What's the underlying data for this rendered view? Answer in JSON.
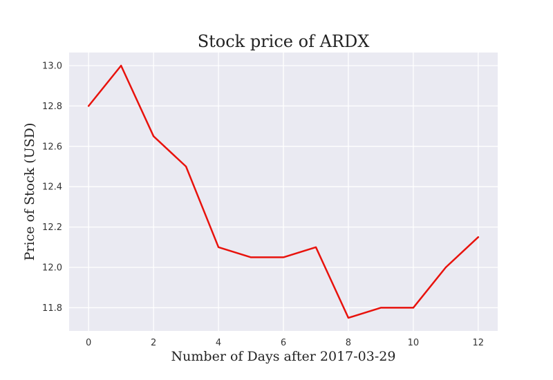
{
  "chart_data": {
    "type": "line",
    "title": "Stock price of ARDX",
    "xlabel": "Number of Days after 2017-03-29",
    "ylabel": "Price of Stock (USD)",
    "xlim": [
      -0.6,
      12.6
    ],
    "ylim": [
      11.685,
      13.065
    ],
    "xticks": [
      0,
      2,
      4,
      6,
      8,
      10,
      12
    ],
    "xtick_labels": [
      "0",
      "2",
      "4",
      "6",
      "8",
      "10",
      "12"
    ],
    "yticks": [
      11.8,
      12.0,
      12.2,
      12.4,
      12.6,
      12.8,
      13.0
    ],
    "ytick_labels": [
      "11.8",
      "12.0",
      "12.2",
      "12.4",
      "12.6",
      "12.8",
      "13.0"
    ],
    "grid": true,
    "legend": "none",
    "colors": {
      "line": "#e8120c",
      "background": "#eaeaf2",
      "grid": "#ffffff"
    },
    "series": [
      {
        "x": [
          0,
          1,
          2,
          3,
          4,
          5,
          6,
          7,
          8,
          9,
          10,
          11,
          12
        ],
        "values": [
          12.8,
          13.0,
          12.65,
          12.5,
          12.1,
          12.05,
          12.05,
          12.1,
          11.75,
          11.8,
          11.8,
          12.0,
          12.15
        ]
      }
    ]
  }
}
